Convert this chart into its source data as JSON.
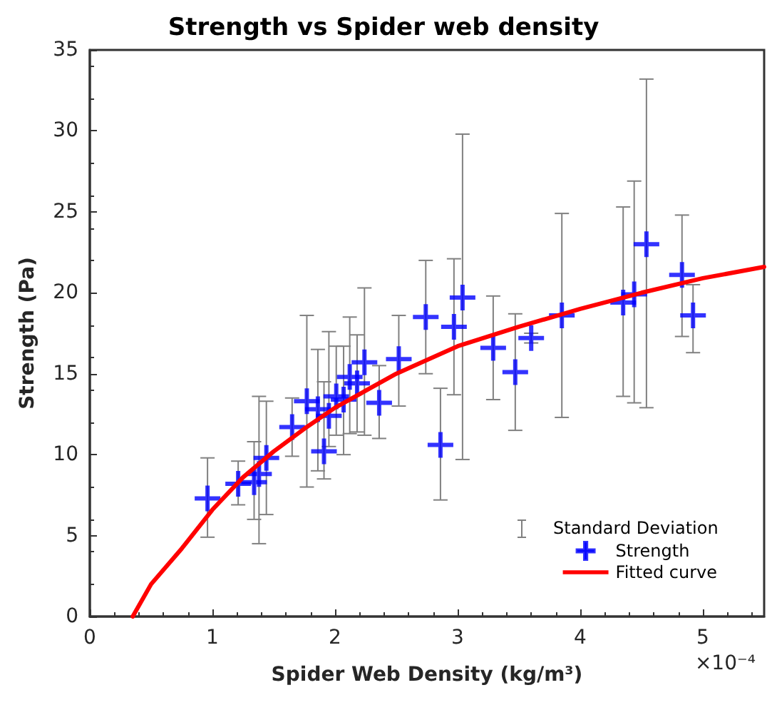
{
  "chart_data": {
    "type": "scatter",
    "title": "Strength vs Spider web density",
    "xlabel": "Spider Web Density (kg/m³)",
    "ylabel": "Strength (Pa)",
    "xlim": [
      0,
      5.5
    ],
    "xticks": [
      0,
      1,
      2,
      3,
      4,
      5
    ],
    "ylim": [
      0,
      35
    ],
    "yticks": [
      0,
      5,
      10,
      15,
      20,
      25,
      30,
      35
    ],
    "grid": false,
    "legend": "bottom right",
    "annotations": [
      "Standard Deviation",
      "×10⁻⁴"
    ],
    "series": [
      {
        "name": "Strength",
        "color": "#0000ff",
        "marker": "cross",
        "x": [
          0.96,
          1.21,
          1.34,
          1.38,
          1.44,
          1.65,
          1.77,
          1.86,
          1.91,
          1.95,
          2.01,
          2.07,
          2.12,
          2.18,
          2.24,
          2.36,
          2.52,
          2.74,
          2.86,
          2.97,
          3.04,
          3.29,
          3.47,
          3.6,
          3.85,
          4.35,
          4.44,
          4.54,
          4.83,
          4.92
        ],
        "values": [
          7.3,
          8.2,
          8.3,
          8.8,
          9.8,
          11.7,
          13.3,
          12.8,
          10.2,
          12.4,
          13.6,
          13.4,
          14.8,
          14.4,
          15.7,
          13.2,
          15.9,
          18.5,
          10.6,
          17.9,
          19.7,
          16.6,
          15.1,
          17.2,
          18.6,
          19.4,
          19.9,
          23.0,
          21.1,
          18.6
        ],
        "errors": [
          [
            4.9,
            9.8
          ],
          [
            6.9,
            9.6
          ],
          [
            6.0,
            10.8
          ],
          [
            4.5,
            13.6
          ],
          [
            6.3,
            13.3
          ],
          [
            9.9,
            13.5
          ],
          [
            8.0,
            18.6
          ],
          [
            9.0,
            16.5
          ],
          [
            8.5,
            14.5
          ],
          [
            10.5,
            17.6
          ],
          [
            11.2,
            16.7
          ],
          [
            10.0,
            16.7
          ],
          [
            11.3,
            18.5
          ],
          [
            11.4,
            17.4
          ],
          [
            11.2,
            20.3
          ],
          [
            11.0,
            15.5
          ],
          [
            13.0,
            18.6
          ],
          [
            15.0,
            22.0
          ],
          [
            7.2,
            14.1
          ],
          [
            13.7,
            22.1
          ],
          [
            9.7,
            29.8
          ],
          [
            13.4,
            19.8
          ],
          [
            11.5,
            18.7
          ],
          [
            16.9,
            17.5
          ],
          [
            12.3,
            24.9
          ],
          [
            13.6,
            25.3
          ],
          [
            13.2,
            26.9
          ],
          [
            12.9,
            33.2
          ],
          [
            17.3,
            24.8
          ],
          [
            16.3,
            20.5
          ]
        ]
      },
      {
        "name": "Fitted curve",
        "type": "line",
        "color": "#ff0000",
        "marker": "none",
        "line_style": "solid",
        "x": [
          0.35,
          0.5,
          0.75,
          1.0,
          1.25,
          1.5,
          1.75,
          2.0,
          2.5,
          3.0,
          3.5,
          4.0,
          4.5,
          5.0,
          5.5
        ],
        "values": [
          0,
          2,
          4.2,
          6.6,
          8.6,
          10.2,
          11.6,
          12.9,
          15,
          16.7,
          17.9,
          19,
          20,
          20.9,
          21.6
        ]
      }
    ]
  }
}
